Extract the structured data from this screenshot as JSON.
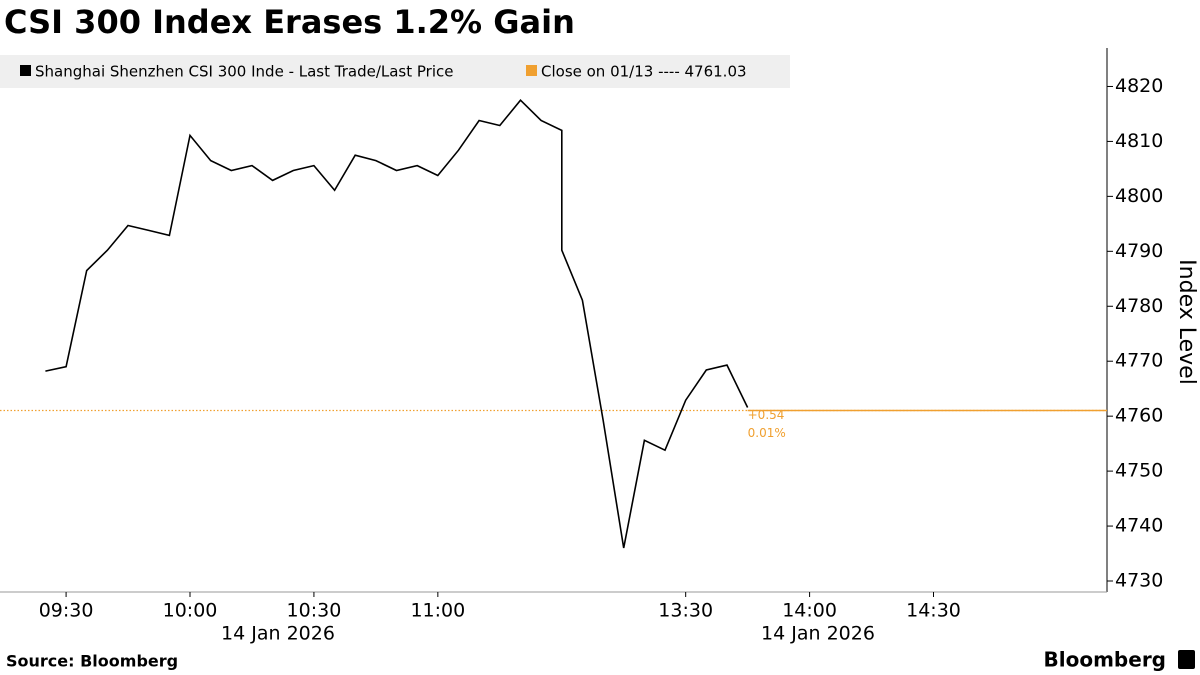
{
  "chart_data": {
    "type": "line",
    "title": "CSI 300 Index Erases 1.2% Gain",
    "y_label": "Index Level",
    "source": "Source: Bloomberg",
    "brand": "Bloomberg",
    "x": [
      "09:25",
      "09:30",
      "09:35",
      "09:40",
      "09:45",
      "09:50",
      "09:55",
      "10:00",
      "10:05",
      "10:10",
      "10:15",
      "10:20",
      "10:25",
      "10:30",
      "10:35",
      "10:40",
      "10:45",
      "10:50",
      "10:55",
      "11:00",
      "11:05",
      "11:10",
      "11:15",
      "11:20",
      "11:25",
      "11:30",
      "13:00",
      "13:05",
      "13:10",
      "13:15",
      "13:20",
      "13:25",
      "13:30",
      "13:35",
      "13:40",
      "13:45"
    ],
    "series": [
      {
        "name": "Shanghai Shenzhen CSI 300 Inde - Last Trade/Last Price",
        "color": "#000000",
        "values": [
          4768.2,
          4769,
          4786.5,
          4790.2,
          4794.7,
          4793.8,
          4792.9,
          4811.1,
          4806.5,
          4804.7,
          4805.6,
          4802.9,
          4804.7,
          4805.6,
          4801.1,
          4807.5,
          4806.5,
          4804.7,
          4805.6,
          4803.8,
          4808.4,
          4813.8,
          4812.9,
          4817.5,
          4813.8,
          4812,
          4790.2,
          4781.1,
          4759.3,
          4736,
          4755.6,
          4753.8,
          4762.9,
          4768.4,
          4769.3,
          4761.57
        ]
      }
    ],
    "reference_line": {
      "label": "Close on 01/13 ---- 4761.03",
      "value": 4761.03,
      "color": "#f0a030"
    },
    "annotations": [
      "+0.54",
      "0.01%"
    ],
    "xlim": [
      "09:14",
      "15:12"
    ],
    "xticks": [
      "09:30",
      "10:00",
      "10:30",
      "11:00",
      "13:30",
      "14:00",
      "14:30"
    ],
    "x_date_labels": [
      "14 Jan 2026",
      "14 Jan 2026"
    ],
    "ylim": [
      4728,
      4827
    ],
    "yticks": [
      4730,
      4740,
      4750,
      4760,
      4770,
      4780,
      4790,
      4800,
      4810,
      4820
    ],
    "grid": false
  }
}
